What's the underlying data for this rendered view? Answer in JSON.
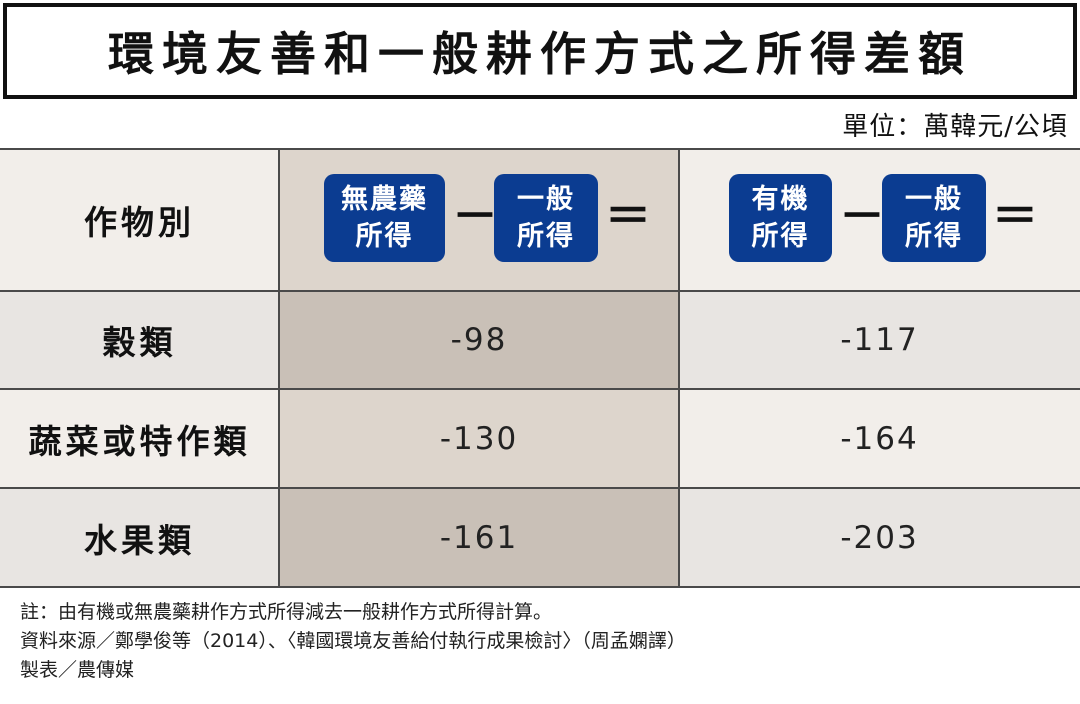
{
  "title": "環境友善和一般耕作方式之所得差額",
  "unit": "單位：萬韓元/公頃",
  "header": {
    "crop_label": "作物別",
    "formula1": {
      "left_line1": "無農藥",
      "left_line2": "所得",
      "minus": "－",
      "right_line1": "一般",
      "right_line2": "所得",
      "equals": "＝"
    },
    "formula2": {
      "left_line1": "有機",
      "left_line2": "所得",
      "minus": "－",
      "right_line1": "一般",
      "right_line2": "所得",
      "equals": "＝"
    }
  },
  "rows": [
    {
      "crop": "穀類",
      "no_pesticide_diff": "-98",
      "organic_diff": "-117"
    },
    {
      "crop": "蔬菜或特作類",
      "no_pesticide_diff": "-130",
      "organic_diff": "-164"
    },
    {
      "crop": "水果類",
      "no_pesticide_diff": "-161",
      "organic_diff": "-203"
    }
  ],
  "colors": {
    "pill_blue": "#0b3c91",
    "header_bg": "#f2eeea",
    "header_mid_bg": "#ddd5cc",
    "data_mid_bg": "#c9c0b7"
  },
  "notes": {
    "line1": "註：由有機或無農藥耕作方式所得減去一般耕作方式所得計算。",
    "line2": "資料來源／鄭學俊等（2014）、〈韓國環境友善給付執行成果檢討〉（周孟嫻譯）",
    "line3": "製表／農傳媒"
  }
}
